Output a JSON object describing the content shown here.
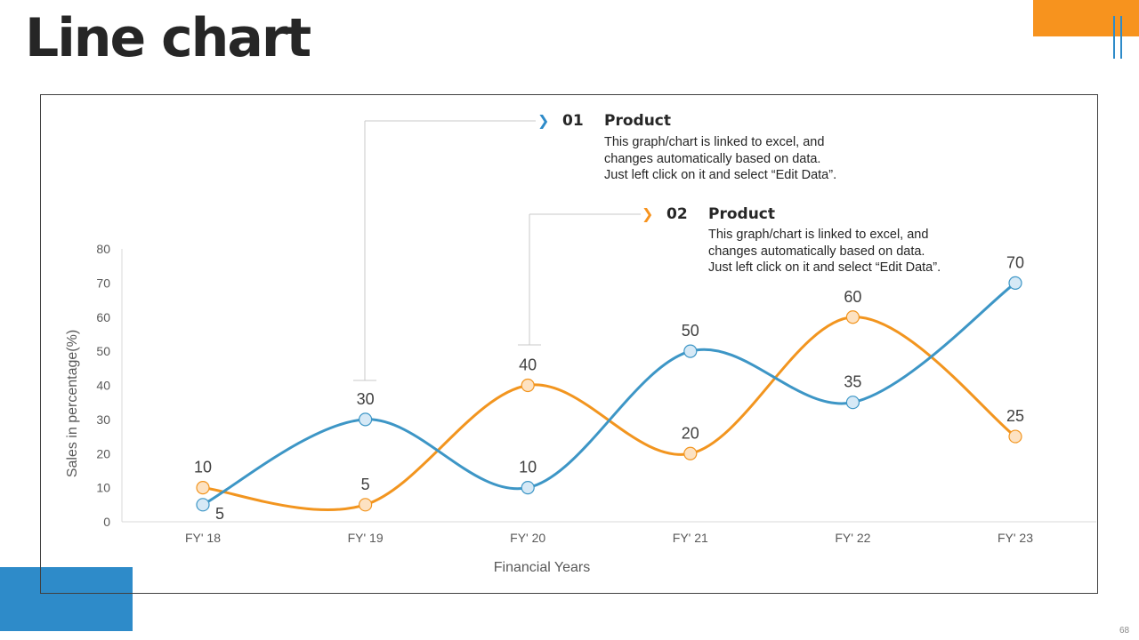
{
  "slide": {
    "title": "Line chart",
    "page_number": "68",
    "colors": {
      "accent_orange": "#f7931e",
      "accent_blue": "#2e8bc9",
      "series_blue": "#3d96c6",
      "series_orange": "#f2951f"
    }
  },
  "callouts": [
    {
      "number": "01",
      "title": "Product",
      "desc_lines": [
        "This graph/chart  is linked to excel, and",
        "changes automatically based on data.",
        "Just left click on it and select “Edit Data”."
      ],
      "arrow_icon": "chevron-right-icon",
      "color": "#2e8bc9"
    },
    {
      "number": "02",
      "title": "Product",
      "desc_lines": [
        "This graph/chart is linked to excel, and",
        "changes automatically based on data.",
        "Just left click on it and select “Edit Data”."
      ],
      "arrow_icon": "chevron-right-icon",
      "color": "#f7931e"
    }
  ],
  "chart_data": {
    "type": "line",
    "title": "",
    "categories": [
      "FY' 18",
      "FY' 19",
      "FY' 20",
      "FY' 21",
      "FY' 22",
      "FY' 23"
    ],
    "series": [
      {
        "name": "Product 01",
        "values": [
          5,
          30,
          10,
          50,
          35,
          70
        ],
        "color": "#3d96c6"
      },
      {
        "name": "Product 02",
        "values": [
          10,
          5,
          40,
          20,
          60,
          25
        ],
        "color": "#f2951f"
      }
    ],
    "xlabel": "Financial Years",
    "ylabel": "Sales in percentage(%)",
    "ylim": [
      0,
      80
    ],
    "yticks": [
      0,
      10,
      20,
      30,
      40,
      50,
      60,
      70,
      80
    ],
    "smooth": true,
    "grid": false
  }
}
